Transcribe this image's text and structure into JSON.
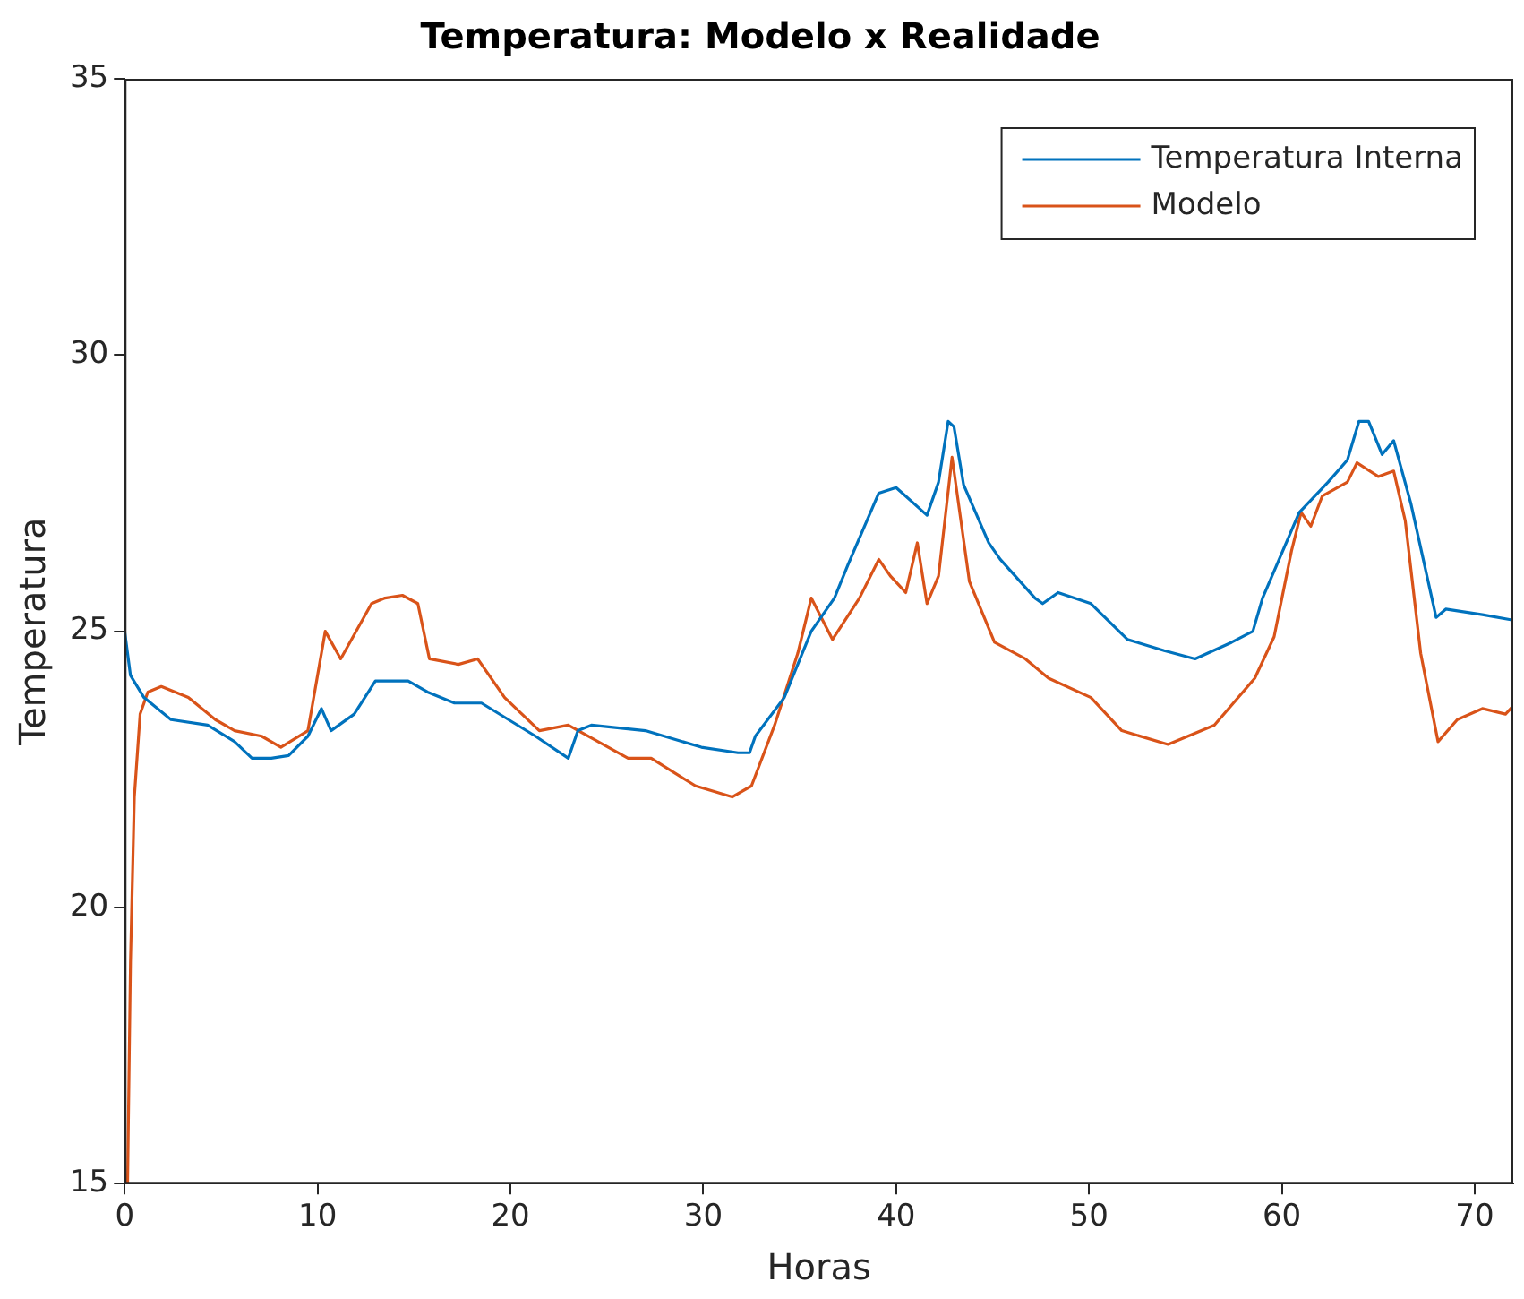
{
  "chart_data": {
    "type": "line",
    "title": "Temperatura: Modelo x Realidade",
    "xlabel": "Horas",
    "ylabel": "Temperatura",
    "xlim": [
      0,
      72
    ],
    "xticks": [
      0,
      10,
      20,
      30,
      40,
      50,
      60,
      70
    ],
    "ylim": [
      15,
      35
    ],
    "yticks": [
      15,
      20,
      25,
      30,
      35
    ],
    "grid": false,
    "legend": "top right",
    "marker": "none",
    "line_style": "solid",
    "series": [
      {
        "name": "Temperatura Interna",
        "color": "#0072bd",
        "x": [
          0,
          0.3,
          1,
          2.4,
          4.3,
          5.7,
          6.6,
          7.6,
          8.5,
          9.5,
          10.2,
          10.7,
          11.9,
          13,
          14.7,
          15.7,
          17.1,
          18.5,
          19.9,
          21.3,
          23,
          23.5,
          24.2,
          27,
          29.9,
          31.8,
          32.4,
          32.7,
          34.2,
          35.6,
          36.8,
          37.5,
          39.1,
          40,
          41.6,
          42.2,
          42.7,
          43,
          43.5,
          44.8,
          45.4,
          47.2,
          47.6,
          48.4,
          50.1,
          52,
          53.9,
          55.5,
          57.4,
          58.5,
          59,
          60.9,
          62.4,
          63.4,
          64,
          64.5,
          65.2,
          65.8,
          66.7,
          68,
          68.5,
          70.4,
          72
        ],
        "values": [
          25.0,
          24.2,
          23.8,
          23.4,
          23.3,
          23.0,
          22.7,
          22.7,
          22.75,
          23.1,
          23.6,
          23.2,
          23.5,
          24.1,
          24.1,
          23.9,
          23.7,
          23.7,
          23.4,
          23.1,
          22.7,
          23.2,
          23.3,
          23.2,
          22.9,
          22.8,
          22.8,
          23.1,
          23.8,
          25.0,
          25.6,
          26.2,
          27.5,
          27.6,
          27.1,
          27.7,
          28.8,
          28.7,
          27.65,
          26.6,
          26.3,
          25.6,
          25.5,
          25.7,
          25.5,
          24.85,
          24.65,
          24.5,
          24.8,
          25.0,
          25.6,
          27.15,
          27.7,
          28.1,
          28.8,
          28.8,
          28.2,
          28.45,
          27.3,
          25.25,
          25.4,
          25.3,
          25.2
        ]
      },
      {
        "name": "Modelo",
        "color": "#d95319",
        "x": [
          0.15,
          0.3,
          0.5,
          0.8,
          1.2,
          1.9,
          3.3,
          4.7,
          5.7,
          7.1,
          8.1,
          9.5,
          10.4,
          11.2,
          12.8,
          13.5,
          14.4,
          15.2,
          15.8,
          17.3,
          18.3,
          19.7,
          21.5,
          23,
          26.1,
          27.3,
          29.6,
          31.5,
          32.5,
          33.7,
          34.9,
          35.6,
          36.7,
          38.1,
          39.1,
          39.7,
          40.5,
          41.1,
          41.6,
          42.2,
          42.9,
          43.8,
          45.1,
          46.7,
          47.9,
          50.1,
          51.7,
          54.1,
          56.5,
          58.6,
          59.6,
          60.5,
          61,
          61.5,
          62.1,
          63.4,
          63.9,
          65,
          65.8,
          66.4,
          67.2,
          68.1,
          69.1,
          70.4,
          71.6,
          72
        ],
        "values": [
          15,
          19,
          22,
          23.5,
          23.9,
          24.0,
          23.8,
          23.4,
          23.2,
          23.1,
          22.9,
          23.2,
          25.0,
          24.5,
          25.5,
          25.6,
          25.65,
          25.5,
          24.5,
          24.4,
          24.5,
          23.8,
          23.2,
          23.3,
          22.7,
          22.7,
          22.2,
          22.0,
          22.2,
          23.3,
          24.6,
          25.6,
          24.85,
          25.6,
          26.3,
          26.0,
          25.7,
          26.6,
          25.5,
          26.0,
          28.15,
          25.9,
          24.8,
          24.5,
          24.15,
          23.8,
          23.2,
          22.95,
          23.3,
          24.15,
          24.9,
          26.45,
          27.15,
          26.9,
          27.45,
          27.7,
          28.05,
          27.8,
          27.9,
          27.0,
          24.6,
          23.0,
          23.4,
          23.6,
          23.5,
          23.65
        ]
      }
    ]
  }
}
